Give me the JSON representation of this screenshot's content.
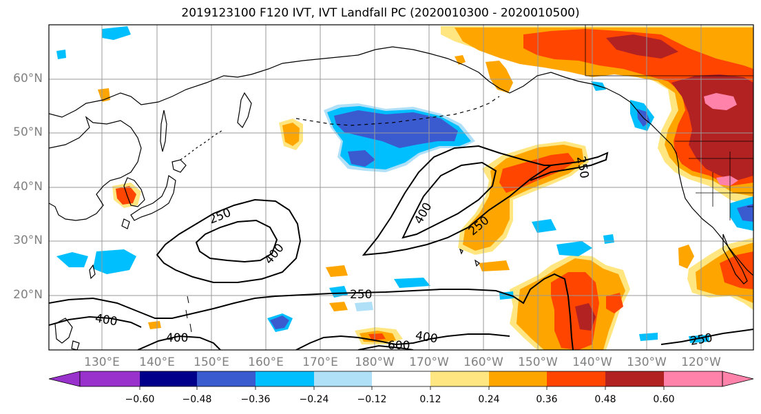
{
  "title": "2019123100 F120 IVT, IVT Landfall PC (2020010300 - 2020010500)",
  "lat_labels": [
    "60°N",
    "50°N",
    "40°N",
    "30°N",
    "20°N"
  ],
  "lon_labels": [
    "130°E",
    "140°E",
    "150°E",
    "160°E",
    "170°E",
    "180°W",
    "170°W",
    "160°W",
    "150°W",
    "140°W",
    "130°W",
    "120°W"
  ],
  "contour_labels": [
    "250",
    "400",
    "400",
    "250",
    "250",
    "250",
    "400",
    "400",
    "600",
    "400",
    "250"
  ],
  "colorbar": {
    "ticks": [
      "−0.60",
      "−0.48",
      "−0.36",
      "−0.24",
      "−0.12",
      "0.12",
      "0.24",
      "0.36",
      "0.48",
      "0.60"
    ],
    "colors": [
      "#9932cc",
      "#00008b",
      "#3a5bd0",
      "#00bfff",
      "#b0e0f8",
      "#ffffff",
      "#ffe680",
      "#ffa500",
      "#ff4500",
      "#b22222",
      "#ff82ab"
    ]
  },
  "shading_colors": {
    "pale_yellow": "#ffe680",
    "orange": "#ffa500",
    "red_orange": "#ff4500",
    "dark_red": "#b22222",
    "pink": "#ff82ab",
    "light_blue": "#b0e0f8",
    "deep_sky_blue": "#00bfff",
    "royal_blue": "#3a5bd0"
  }
}
